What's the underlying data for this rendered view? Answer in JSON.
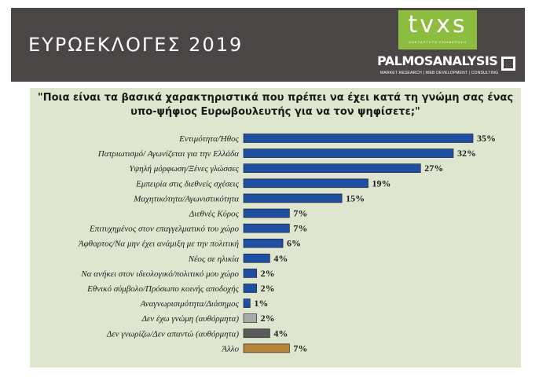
{
  "header": {
    "title": "ΕΥΡΩΕΚΛΟΓΕΣ 2019",
    "logo_tvxs": "tvxs",
    "logo_tvxs_tagline": "ΑΝΕΞΑΡΤΗΤΟ ΕΝΗΜΕΡΩΣΗ",
    "logo_palmos": "PALMOSANALYSIS",
    "logo_palmos_tagline": "MARKET RESEARCH | WEB DEVELOPMENT | CONSULTING"
  },
  "colors": {
    "header_bg": "#4a4646",
    "panel_bg": "#dfe6cf",
    "bar_blue": "#1f4fa0",
    "bar_grey": "#a9a9a9",
    "bar_dark": "#5a5a5a",
    "bar_gold": "#b8863b"
  },
  "chart_data": {
    "type": "bar",
    "orientation": "horizontal",
    "title": "\"Ποια είναι τα βασικά χαρακτηριστικά που πρέπει να έχει κατά τη γνώμη σας ένας υπο-ψήφιος Ευρωβουλευτής για να τον ψηφίσετε;\"",
    "categories": [
      "Εντιμότητα/Ήθος",
      "Πατριωτισμό/ Αγωνίζεται για την Ελλάδα",
      "Υψηλή μόρφωση/Ξένες γλώσσες",
      "Εμπειρία στις διεθνείς σχέσεις",
      "Μαχητικότητα/Αγωνιστικότητα",
      "Διεθνές Κύρος",
      "Επιτυχημένος στον επαγγελματικό του χώρο",
      "Άφθαρτος/Να μην έχει ανάμιξη με την πολιτική",
      "Νέος σε ηλικία",
      "Να ανήκει στον ιδεολογικό/πολιτικό μου χώρο",
      "Εθνικό σύμβολο/Πρόσωπο κοινής αποδοχής",
      "Αναγνωρισιμότητα/Διάσημος",
      "Δεν έχω γνώμη (αυθόρμητα)",
      "Δεν γνωρίζω/Δεν απαντώ (αυθόρμητα)",
      "Άλλο"
    ],
    "values": [
      35,
      32,
      27,
      19,
      15,
      7,
      7,
      6,
      4,
      2,
      2,
      1,
      2,
      4,
      7
    ],
    "value_labels": [
      "35%",
      "32%",
      "27%",
      "19%",
      "15%",
      "7%",
      "7%",
      "6%",
      "4%",
      "2%",
      "2%",
      "1%",
      "2%",
      "4%",
      "7%"
    ],
    "bar_colors": [
      "#1f4fa0",
      "#1f4fa0",
      "#1f4fa0",
      "#1f4fa0",
      "#1f4fa0",
      "#1f4fa0",
      "#1f4fa0",
      "#1f4fa0",
      "#1f4fa0",
      "#1f4fa0",
      "#1f4fa0",
      "#1f4fa0",
      "#a9a9a9",
      "#5a5a5a",
      "#b8863b"
    ],
    "xlim": [
      0,
      35
    ],
    "grid": false,
    "legend": "none"
  }
}
